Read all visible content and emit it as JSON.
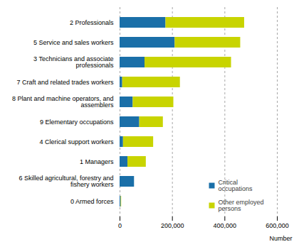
{
  "chart_data": {
    "type": "bar",
    "orientation": "horizontal",
    "stacked": true,
    "categories": [
      "2 Professionals",
      "5 Service and sales workers",
      "3 Technicians and associate\nprofessionals",
      "7 Craft and related trades workers",
      "8 Plant and machine operators, and\nassemblers",
      "9 Elementary occupations",
      "4 Clerical support workers",
      "1 Managers",
      "6 Skilled agricultural, forestry and\nfishery workers",
      "0 Armed forces"
    ],
    "series": [
      {
        "name": "Critical\noccupations",
        "color": "#1a6fa8",
        "values": [
          175000,
          210000,
          95000,
          10000,
          50000,
          75000,
          13000,
          30000,
          55000,
          4000
        ]
      },
      {
        "name": "Other employed\npersons",
        "color": "#c8d400",
        "values": [
          300000,
          250000,
          330000,
          220000,
          155000,
          90000,
          115000,
          70000,
          0,
          2000
        ]
      }
    ],
    "xlabel": "Number",
    "xlim": [
      0,
      600000
    ],
    "xticks": [
      0,
      {
        "value": 200000,
        "label": "200,000"
      },
      {
        "value": 400000,
        "label": "400,000"
      },
      {
        "value": 600000,
        "label": "600,000"
      }
    ],
    "grid": true,
    "legend": "lower right"
  }
}
